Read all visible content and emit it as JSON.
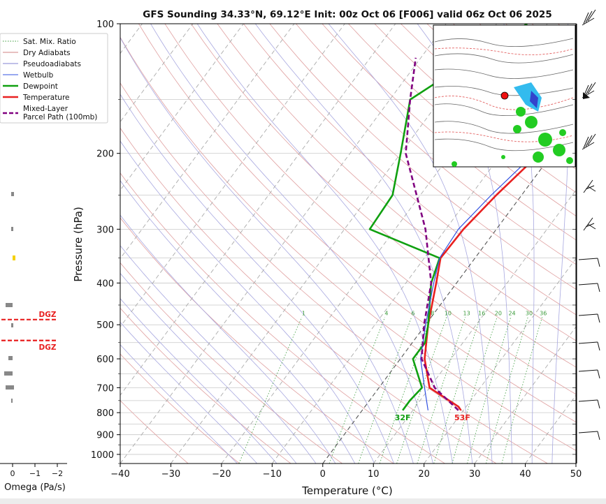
{
  "chart_data": {
    "type": "line",
    "title": "GFS Sounding 34.33°N, 69.12°E Init: 00z Oct 06 [F006] valid 06z Oct 06 2025",
    "xlabel": "Temperature (°C)",
    "ylabel": "Pressure (hPa)",
    "xlim": [
      -40,
      50
    ],
    "ylim": [
      1050,
      100
    ],
    "y_scale": "log",
    "x_ticks": [
      "−40",
      "−30",
      "−20",
      "−10",
      "0",
      "10",
      "20",
      "30",
      "40",
      "50"
    ],
    "y_ticks": [
      "100",
      "200",
      "300",
      "400",
      "500",
      "600",
      "700",
      "800",
      "900",
      "1000"
    ],
    "grid": true,
    "legend_position": "top-left",
    "legend": [
      {
        "label": "Sat. Mix. Ratio",
        "color": "#3a9a3a",
        "style": "dotted"
      },
      {
        "label": "Dry Adiabats",
        "color": "#d08080",
        "style": "solid"
      },
      {
        "label": "Pseudoadiabats",
        "color": "#8080d0",
        "style": "solid"
      },
      {
        "label": "Wetbulb",
        "color": "#3050e0",
        "style": "solid"
      },
      {
        "label": "Dewpoint",
        "color": "#10a010",
        "style": "solid"
      },
      {
        "label": "Temperature",
        "color": "#e82020",
        "style": "solid"
      },
      {
        "label": "Mixed-Layer\nParcel Path (100mb)",
        "color": "#800080",
        "style": "dashed"
      }
    ],
    "mixing_ratio_labels": [
      "1",
      "4",
      "6",
      "8",
      "10",
      "13",
      "16",
      "20",
      "24",
      "30",
      "36"
    ],
    "series": [
      {
        "name": "Temperature",
        "color": "#e82020",
        "points": [
          [
            100,
            -0.3
          ],
          [
            150,
            -0.5
          ],
          [
            200,
            -2.5
          ],
          [
            250,
            -5
          ],
          [
            300,
            -6.5
          ],
          [
            350,
            -6.8
          ],
          [
            400,
            -4
          ],
          [
            500,
            0.5
          ],
          [
            600,
            4.8
          ],
          [
            700,
            10
          ],
          [
            775,
            18.5
          ],
          [
            790,
            19.5
          ]
        ]
      },
      {
        "name": "Dewpoint",
        "color": "#10a010",
        "points": [
          [
            100,
            -24
          ],
          [
            150,
            -36
          ],
          [
            200,
            -30
          ],
          [
            250,
            -25.5
          ],
          [
            300,
            -25
          ],
          [
            350,
            -7
          ],
          [
            400,
            -5
          ],
          [
            500,
            0.5
          ],
          [
            550,
            2.5
          ],
          [
            600,
            2.5
          ],
          [
            700,
            8.5
          ],
          [
            750,
            8
          ],
          [
            790,
            8
          ]
        ]
      },
      {
        "name": "Wetbulb",
        "color": "#3050e0",
        "points": [
          [
            100,
            -1
          ],
          [
            150,
            -1.2
          ],
          [
            200,
            -3.5
          ],
          [
            250,
            -6
          ],
          [
            300,
            -7.5
          ],
          [
            350,
            -7
          ],
          [
            400,
            -4.5
          ],
          [
            500,
            0
          ],
          [
            600,
            4
          ],
          [
            700,
            9
          ],
          [
            790,
            13
          ]
        ]
      },
      {
        "name": "Mixed-Layer Parcel Path (100mb)",
        "color": "#800080",
        "points": [
          [
            790,
            19
          ],
          [
            700,
            11
          ],
          [
            600,
            4.2
          ],
          [
            500,
            -0.3
          ],
          [
            400,
            -5
          ],
          [
            300,
            -14
          ],
          [
            200,
            -29
          ],
          [
            150,
            -36
          ],
          [
            120,
            -41
          ]
        ]
      }
    ],
    "surface_labels": {
      "temperature": "53F",
      "dewpoint": "32F"
    },
    "omega_panel": {
      "xlabel": "Omega (Pa/s)",
      "x_ticks": [
        "0",
        "−1",
        "−2"
      ],
      "dgz_label": "DGZ",
      "dgz_pressures": [
        490,
        550
      ]
    },
    "inset_map": {
      "location": "top-right"
    }
  }
}
